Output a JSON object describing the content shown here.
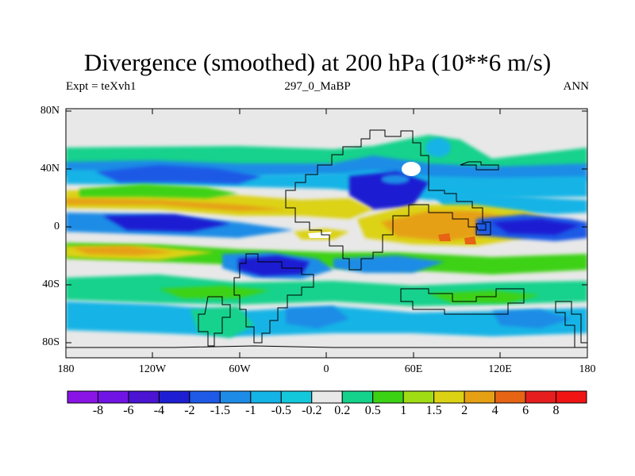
{
  "title": "Divergence (smoothed) at 200 hPa (10**6 m/s)",
  "subtitle_left": "Expt = teXvh1",
  "subtitle_center": "297_0_MaBP",
  "subtitle_right": "ANN",
  "lat_labels": [
    "80N",
    "40N",
    "0",
    "40S",
    "80S"
  ],
  "lon_labels": [
    "180",
    "120W",
    "60W",
    "0",
    "60E",
    "120E",
    "180"
  ],
  "colorbar": {
    "labels": [
      "-8",
      "-6",
      "-4",
      "-2",
      "-1.5",
      "-1",
      "-0.5",
      "-0.2",
      "0.2",
      "0.5",
      "1",
      "1.5",
      "2",
      "4",
      "6",
      "8"
    ],
    "colors": [
      "#8a14e6",
      "#7014e6",
      "#4a14d2",
      "#1e1ed2",
      "#1e5ae6",
      "#1e8ce6",
      "#14b4e6",
      "#14c8dc",
      "#e8e8e8",
      "#14d28c",
      "#3cd214",
      "#a0dc14",
      "#dcd214",
      "#e6a014",
      "#e66414",
      "#e61e1e",
      "#f01414"
    ]
  },
  "palette": {
    "background": "#e8e8e8",
    "coastline": "#000000"
  }
}
